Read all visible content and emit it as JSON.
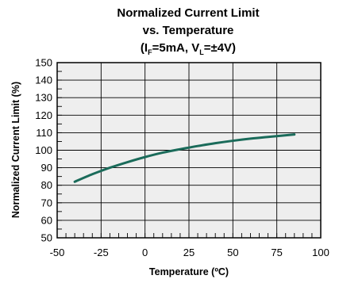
{
  "chart_data": {
    "type": "line",
    "title": [
      "Normalized Current Limit",
      "vs. Temperature"
    ],
    "title_conditions": {
      "open": "(I",
      "sub1": "F",
      "mid": "=5mA, V",
      "sub2": "L",
      "close": "=±4V)"
    },
    "xlabel": "Temperature (ºC)",
    "ylabel": "Normalized Current Limit (%)",
    "xlim": [
      -50,
      100
    ],
    "ylim": [
      50,
      150
    ],
    "x_ticks": [
      -50,
      -25,
      0,
      25,
      50,
      75,
      100
    ],
    "y_ticks": [
      50,
      60,
      70,
      80,
      90,
      100,
      110,
      120,
      130,
      140,
      150
    ],
    "grid": true,
    "series": [
      {
        "color": "#1a6b5a",
        "x": [
          -40,
          -30,
          -20,
          -10,
          0,
          10,
          20,
          25,
          30,
          40,
          50,
          60,
          70,
          85
        ],
        "y": [
          82,
          86.3,
          90,
          93.2,
          96.1,
          98.6,
          100.6,
          101.5,
          102.4,
          104.0,
          105.4,
          106.6,
          107.6,
          109
        ]
      }
    ]
  }
}
